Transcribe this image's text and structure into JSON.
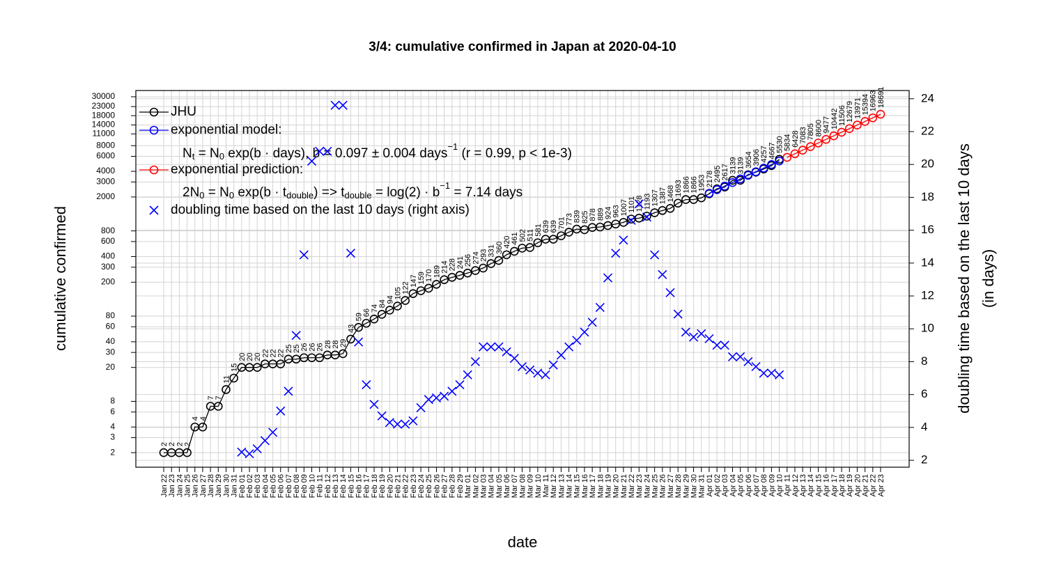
{
  "chart_data": {
    "type": "line",
    "title": "3/4: cumulative confirmed in Japan at 2020-04-10",
    "xlabel": "date",
    "ylabel": "cumulative confirmed",
    "y2label": [
      "doubling time based on the last 10 days",
      "(in days)"
    ],
    "log_y": true,
    "grid": true,
    "legend": "top-left",
    "categories": [
      "Jan 22",
      "Jan 23",
      "Jan 24",
      "Jan 25",
      "Jan 26",
      "Jan 27",
      "Jan 28",
      "Jan 29",
      "Jan 30",
      "Jan 31",
      "Feb 01",
      "Feb 02",
      "Feb 03",
      "Feb 04",
      "Feb 05",
      "Feb 06",
      "Feb 07",
      "Feb 08",
      "Feb 09",
      "Feb 10",
      "Feb 11",
      "Feb 12",
      "Feb 13",
      "Feb 14",
      "Feb 15",
      "Feb 16",
      "Feb 17",
      "Feb 18",
      "Feb 19",
      "Feb 20",
      "Feb 21",
      "Feb 22",
      "Feb 23",
      "Feb 24",
      "Feb 25",
      "Feb 26",
      "Feb 27",
      "Feb 28",
      "Feb 29",
      "Mar 01",
      "Mar 02",
      "Mar 03",
      "Mar 04",
      "Mar 05",
      "Mar 06",
      "Mar 07",
      "Mar 08",
      "Mar 09",
      "Mar 10",
      "Mar 11",
      "Mar 12",
      "Mar 13",
      "Mar 14",
      "Mar 15",
      "Mar 16",
      "Mar 17",
      "Mar 18",
      "Mar 19",
      "Mar 20",
      "Mar 21",
      "Mar 22",
      "Mar 23",
      "Mar 24",
      "Mar 25",
      "Mar 26",
      "Mar 27",
      "Mar 28",
      "Mar 29",
      "Mar 30",
      "Mar 31",
      "Apr 01",
      "Apr 02",
      "Apr 03",
      "Apr 04",
      "Apr 05",
      "Apr 06",
      "Apr 07",
      "Apr 08",
      "Apr 09",
      "Apr 10",
      "Apr 11",
      "Apr 12",
      "Apr 13",
      "Apr 14",
      "Apr 15",
      "Apr 16",
      "Apr 17",
      "Apr 18",
      "Apr 19",
      "Apr 20",
      "Apr 21",
      "Apr 22",
      "Apr 23"
    ],
    "ylim": [
      1.35,
      35500
    ],
    "yticks": [
      2,
      3,
      4,
      6,
      8,
      20,
      30,
      40,
      60,
      80,
      200,
      300,
      400,
      600,
      800,
      2000,
      3000,
      4000,
      6000,
      8000,
      11000,
      14000,
      18000,
      23000,
      30000
    ],
    "y2lim": [
      1.58,
      24.5
    ],
    "y2ticks": [
      2,
      4,
      6,
      8,
      10,
      12,
      14,
      16,
      18,
      20,
      22,
      24
    ],
    "series": [
      {
        "name": "JHU",
        "color": "#000000",
        "marker": "circle",
        "labels": true,
        "values": [
          2,
          2,
          2,
          2,
          4,
          4,
          7,
          7,
          11,
          15,
          20,
          20,
          20,
          22,
          22,
          22,
          25,
          25,
          26,
          26,
          26,
          28,
          28,
          29,
          43,
          59,
          66,
          74,
          84,
          94,
          105,
          122,
          147,
          159,
          170,
          189,
          214,
          228,
          241,
          256,
          274,
          293,
          331,
          360,
          420,
          461,
          502,
          511,
          581,
          639,
          639,
          701,
          773,
          839,
          825,
          878,
          889,
          924,
          963,
          1007,
          1101,
          1128,
          1193,
          1307,
          1387,
          1468,
          1693,
          1866,
          1866,
          1953,
          2178,
          2495,
          2617,
          3139,
          3139,
          3654,
          3906,
          4257,
          4667,
          5530,
          null,
          null,
          null,
          null,
          null,
          null,
          null,
          null,
          null,
          null,
          null,
          null,
          null
        ]
      },
      {
        "name": "exponential model:",
        "color": "#0000ff",
        "marker": "circle",
        "labels": false,
        "values": [
          null,
          null,
          null,
          null,
          null,
          null,
          null,
          null,
          null,
          null,
          null,
          null,
          null,
          null,
          null,
          null,
          null,
          null,
          null,
          null,
          null,
          null,
          null,
          null,
          null,
          null,
          null,
          null,
          null,
          null,
          null,
          null,
          null,
          null,
          null,
          null,
          null,
          null,
          null,
          null,
          null,
          null,
          null,
          null,
          null,
          null,
          null,
          null,
          null,
          null,
          null,
          null,
          null,
          null,
          null,
          null,
          null,
          null,
          null,
          null,
          null,
          null,
          null,
          null,
          null,
          null,
          null,
          null,
          null,
          null,
          2210,
          2436,
          2684,
          2957,
          3259,
          3591,
          3957,
          4360,
          4804,
          5294,
          null,
          null,
          null,
          null,
          null,
          null,
          null,
          null,
          null,
          null,
          null,
          null,
          null
        ]
      },
      {
        "name": "exponential prediction:",
        "color": "#ff0000",
        "marker": "circle",
        "labels": true,
        "values": [
          null,
          null,
          null,
          null,
          null,
          null,
          null,
          null,
          null,
          null,
          null,
          null,
          null,
          null,
          null,
          null,
          null,
          null,
          null,
          null,
          null,
          null,
          null,
          null,
          null,
          null,
          null,
          null,
          null,
          null,
          null,
          null,
          null,
          null,
          null,
          null,
          null,
          null,
          null,
          null,
          null,
          null,
          null,
          null,
          null,
          null,
          null,
          null,
          null,
          null,
          null,
          null,
          null,
          null,
          null,
          null,
          null,
          null,
          null,
          null,
          null,
          null,
          null,
          null,
          null,
          null,
          null,
          null,
          null,
          null,
          null,
          null,
          null,
          null,
          null,
          null,
          null,
          null,
          null,
          null,
          5834,
          6428,
          7083,
          7805,
          8600,
          9477,
          10442,
          11506,
          12679,
          13971,
          15394,
          16963,
          18691
        ]
      },
      {
        "name": "doubling time based on the last  10  days (right axis)",
        "color": "#0000ff",
        "marker": "x",
        "axis": "y2",
        "labels": false,
        "values": [
          null,
          null,
          null,
          null,
          null,
          null,
          null,
          null,
          null,
          null,
          2.5,
          2.4,
          2.7,
          3.2,
          3.7,
          5.0,
          6.2,
          9.6,
          14.5,
          20.2,
          20.8,
          20.8,
          23.6,
          23.6,
          14.6,
          9.2,
          6.6,
          5.4,
          4.7,
          4.3,
          4.2,
          4.2,
          4.4,
          5.2,
          5.7,
          5.8,
          5.9,
          6.2,
          6.6,
          7.2,
          8.0,
          8.9,
          8.9,
          8.9,
          8.6,
          8.2,
          7.7,
          7.5,
          7.3,
          7.2,
          7.8,
          8.4,
          8.9,
          9.3,
          9.8,
          10.4,
          11.3,
          13.1,
          14.6,
          15.4,
          16.6,
          17.6,
          16.8,
          14.5,
          13.3,
          12.2,
          10.9,
          9.8,
          9.5,
          9.7,
          9.4,
          9.0,
          9.0,
          8.3,
          8.3,
          8.0,
          7.7,
          7.3,
          7.3,
          7.2,
          null,
          null,
          null,
          null,
          null,
          null,
          null,
          null,
          null,
          null,
          null,
          null,
          null
        ]
      }
    ],
    "legend_notes": [
      [
        "N",
        "t",
        " = N",
        "0",
        " exp(b · days), b = 0.097 ± 0.004 days",
        "−1",
        " (r = 0.99, p < 1e-3)"
      ],
      [
        "2N",
        "0",
        " = N",
        "0",
        " exp(b · t",
        "double",
        ") => t",
        "double",
        " = log(2) · b",
        "−1",
        " = 7.14 days"
      ]
    ]
  }
}
